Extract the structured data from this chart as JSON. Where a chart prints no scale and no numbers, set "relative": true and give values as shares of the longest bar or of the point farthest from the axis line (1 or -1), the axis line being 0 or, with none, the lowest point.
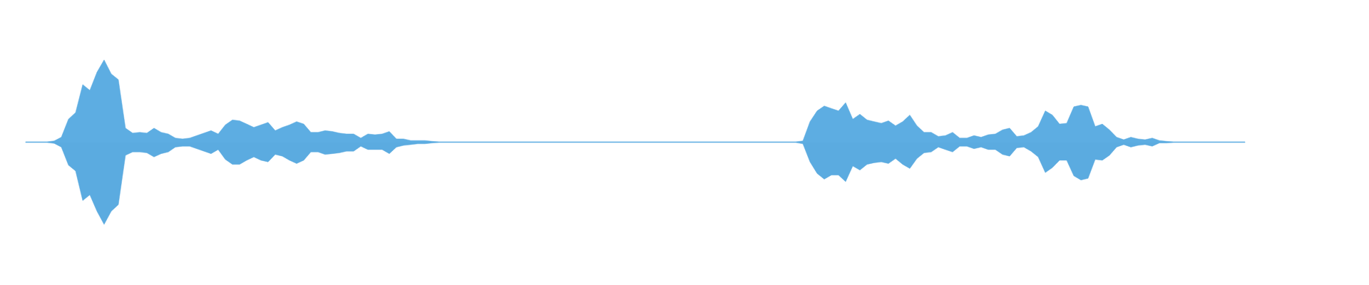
{
  "chart_data": {
    "type": "area",
    "relative": true,
    "categories": [
      null,
      null,
      null,
      null,
      null,
      null,
      null,
      null,
      null,
      null,
      null,
      null,
      null,
      null,
      null,
      null,
      null,
      null,
      null,
      null,
      null,
      null,
      null,
      null,
      null,
      null,
      null,
      null,
      null,
      null,
      null,
      null,
      null,
      null,
      null,
      null,
      null,
      null,
      null,
      null,
      null,
      null,
      null,
      null,
      null,
      null,
      null,
      null,
      null,
      null,
      null,
      null,
      null,
      null,
      null,
      null,
      null,
      null,
      null,
      null,
      null,
      null,
      null,
      null,
      null,
      null,
      null,
      null,
      null,
      null,
      null,
      null,
      null,
      null,
      null,
      null,
      null,
      null,
      null,
      null,
      null,
      null,
      null,
      null,
      null,
      null,
      null,
      null,
      null,
      null,
      null,
      null,
      null,
      null,
      null,
      null,
      null,
      null,
      null,
      null,
      null,
      null,
      null,
      null,
      null,
      null,
      null,
      null,
      null,
      null,
      null,
      null,
      null,
      null,
      null,
      null,
      null,
      null,
      null,
      null,
      null,
      null,
      null,
      null,
      null,
      null,
      null,
      null,
      null,
      null,
      null,
      null,
      null,
      null,
      null,
      null,
      null,
      null,
      null,
      null,
      null,
      null,
      null,
      null,
      null,
      null,
      null,
      null,
      null,
      null,
      null,
      null,
      null,
      null,
      null,
      null,
      null,
      null,
      null,
      null,
      null,
      null,
      null,
      null,
      null,
      null,
      null,
      null,
      null,
      null,
      null,
      null
    ],
    "series": [
      {
        "color": "#5dade2",
        "values": [
          0.005,
          0.005,
          0.005,
          0.005,
          0.015,
          0.06,
          0.28,
          0.36,
          0.7,
          0.63,
          0.85,
          1.0,
          0.83,
          0.76,
          0.17,
          0.11,
          0.12,
          0.11,
          0.17,
          0.12,
          0.1,
          0.05,
          0.04,
          0.05,
          0.08,
          0.11,
          0.14,
          0.1,
          0.21,
          0.27,
          0.26,
          0.22,
          0.18,
          0.21,
          0.24,
          0.14,
          0.18,
          0.21,
          0.25,
          0.22,
          0.12,
          0.12,
          0.14,
          0.13,
          0.11,
          0.1,
          0.1,
          0.05,
          0.1,
          0.09,
          0.1,
          0.13,
          0.04,
          0.04,
          0.02,
          0.02,
          0.02,
          0.01,
          0.005,
          0.005,
          0.005,
          0.005,
          0.005,
          0.005,
          0.005,
          0.005,
          0.005,
          0.005,
          0.005,
          0.005,
          0.005,
          0.005,
          0.005,
          0.005,
          0.005,
          0.005,
          0.005,
          0.005,
          0.005,
          0.005,
          0.005,
          0.005,
          0.005,
          0.005,
          0.005,
          0.005,
          0.005,
          0.005,
          0.005,
          0.005,
          0.005,
          0.005,
          0.005,
          0.005,
          0.005,
          0.005,
          0.005,
          0.005,
          0.005,
          0.005,
          0.005,
          0.005,
          0.005,
          0.005,
          0.005,
          0.005,
          0.005,
          0.005,
          0.005,
          0.015,
          0.25,
          0.38,
          0.44,
          0.41,
          0.38,
          0.48,
          0.28,
          0.34,
          0.27,
          0.25,
          0.23,
          0.26,
          0.2,
          0.25,
          0.33,
          0.2,
          0.12,
          0.12,
          0.07,
          0.08,
          0.12,
          0.05,
          0.05,
          0.08,
          0.06,
          0.09,
          0.1,
          0.15,
          0.17,
          0.07,
          0.08,
          0.12,
          0.19,
          0.38,
          0.33,
          0.22,
          0.23,
          0.43,
          0.45,
          0.43,
          0.19,
          0.22,
          0.15,
          0.06,
          0.03,
          0.06,
          0.04,
          0.03,
          0.05,
          0.02,
          0.01,
          0.005,
          0.005,
          0.005,
          0.005,
          0.005,
          0.005,
          0.005,
          0.005,
          0.005,
          0.005,
          0.005
        ]
      },
      {
        "color": "#5babe0",
        "values": [
          -0.005,
          -0.005,
          -0.005,
          -0.005,
          -0.015,
          -0.06,
          -0.28,
          -0.35,
          -0.71,
          -0.64,
          -0.84,
          -1.0,
          -0.84,
          -0.76,
          -0.16,
          -0.12,
          -0.12,
          -0.13,
          -0.18,
          -0.14,
          -0.12,
          -0.06,
          -0.05,
          -0.05,
          -0.08,
          -0.11,
          -0.14,
          -0.09,
          -0.21,
          -0.27,
          -0.27,
          -0.22,
          -0.18,
          -0.22,
          -0.24,
          -0.15,
          -0.17,
          -0.22,
          -0.26,
          -0.22,
          -0.12,
          -0.12,
          -0.15,
          -0.14,
          -0.13,
          -0.11,
          -0.11,
          -0.05,
          -0.09,
          -0.09,
          -0.09,
          -0.14,
          -0.06,
          -0.04,
          -0.03,
          -0.02,
          -0.02,
          -0.01,
          -0.005,
          -0.005,
          -0.005,
          -0.005,
          -0.005,
          -0.005,
          -0.005,
          -0.005,
          -0.005,
          -0.005,
          -0.005,
          -0.005,
          -0.005,
          -0.005,
          -0.005,
          -0.005,
          -0.005,
          -0.005,
          -0.005,
          -0.005,
          -0.005,
          -0.005,
          -0.005,
          -0.005,
          -0.005,
          -0.005,
          -0.005,
          -0.005,
          -0.005,
          -0.005,
          -0.005,
          -0.005,
          -0.005,
          -0.005,
          -0.005,
          -0.005,
          -0.005,
          -0.005,
          -0.005,
          -0.005,
          -0.005,
          -0.005,
          -0.005,
          -0.005,
          -0.005,
          -0.005,
          -0.005,
          -0.005,
          -0.005,
          -0.005,
          -0.005,
          -0.02,
          -0.24,
          -0.38,
          -0.45,
          -0.4,
          -0.4,
          -0.48,
          -0.29,
          -0.34,
          -0.27,
          -0.25,
          -0.24,
          -0.26,
          -0.2,
          -0.27,
          -0.32,
          -0.2,
          -0.13,
          -0.12,
          -0.06,
          -0.09,
          -0.12,
          -0.05,
          -0.05,
          -0.08,
          -0.06,
          -0.09,
          -0.09,
          -0.15,
          -0.17,
          -0.07,
          -0.06,
          -0.11,
          -0.18,
          -0.37,
          -0.31,
          -0.22,
          -0.22,
          -0.41,
          -0.46,
          -0.44,
          -0.21,
          -0.22,
          -0.16,
          -0.06,
          -0.03,
          -0.06,
          -0.04,
          -0.03,
          -0.05,
          -0.01,
          -0.01,
          -0.005,
          -0.005,
          -0.005,
          -0.005,
          -0.005,
          -0.005,
          -0.005,
          -0.005,
          -0.005,
          -0.005,
          -0.005
        ]
      }
    ]
  }
}
